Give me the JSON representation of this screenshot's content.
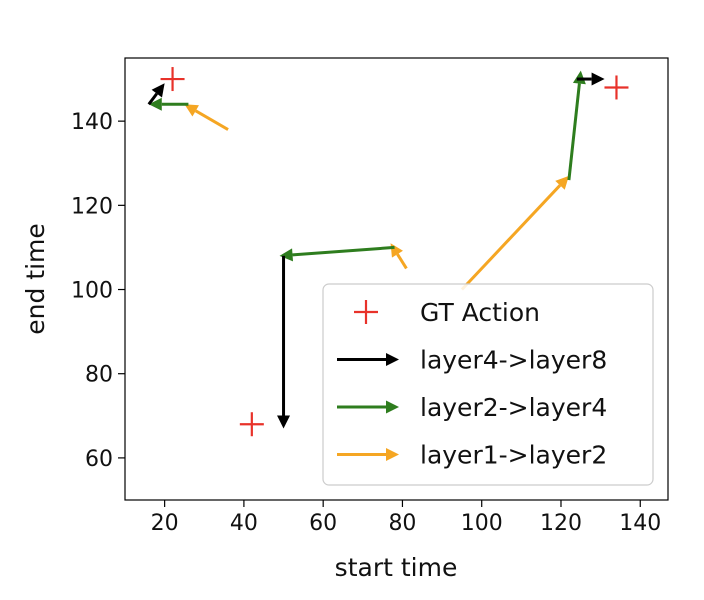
{
  "chart_data": {
    "type": "scatter",
    "title": "",
    "xlabel": "start time",
    "ylabel": "end time",
    "xlim": [
      10,
      147
    ],
    "ylim": [
      50,
      155
    ],
    "xticks": [
      20,
      40,
      60,
      80,
      100,
      120,
      140
    ],
    "yticks": [
      60,
      80,
      100,
      120,
      140
    ],
    "grid": false,
    "legend_position": "bottom-right",
    "gt_actions": {
      "name": "GT Action",
      "color": "#e8322a",
      "marker": "plus",
      "points": [
        {
          "x": 22,
          "y": 150
        },
        {
          "x": 42,
          "y": 68
        },
        {
          "x": 134,
          "y": 148
        }
      ]
    },
    "arrow_series": [
      {
        "name": "layer4->layer8",
        "color": "#000000",
        "arrows": [
          {
            "from": [
              50,
              108
            ],
            "to": [
              50,
              67
            ]
          },
          {
            "from": [
              16,
              144
            ],
            "to": [
              20,
              149
            ]
          },
          {
            "from": [
              124,
              150
            ],
            "to": [
              131,
              150
            ]
          }
        ]
      },
      {
        "name": "layer2->layer4",
        "color": "#2e7d1e",
        "arrows": [
          {
            "from": [
              78,
              110
            ],
            "to": [
              49,
              108
            ]
          },
          {
            "from": [
              26,
              144
            ],
            "to": [
              16,
              144
            ]
          },
          {
            "from": [
              122,
              126
            ],
            "to": [
              125,
              152
            ]
          }
        ]
      },
      {
        "name": "layer1->layer2",
        "color": "#f5a623",
        "arrows": [
          {
            "from": [
              81,
              105
            ],
            "to": [
              77,
              111
            ]
          },
          {
            "from": [
              36,
              138
            ],
            "to": [
              25,
              144
            ]
          },
          {
            "from": [
              95,
              100
            ],
            "to": [
              122,
              127
            ]
          }
        ]
      }
    ]
  }
}
